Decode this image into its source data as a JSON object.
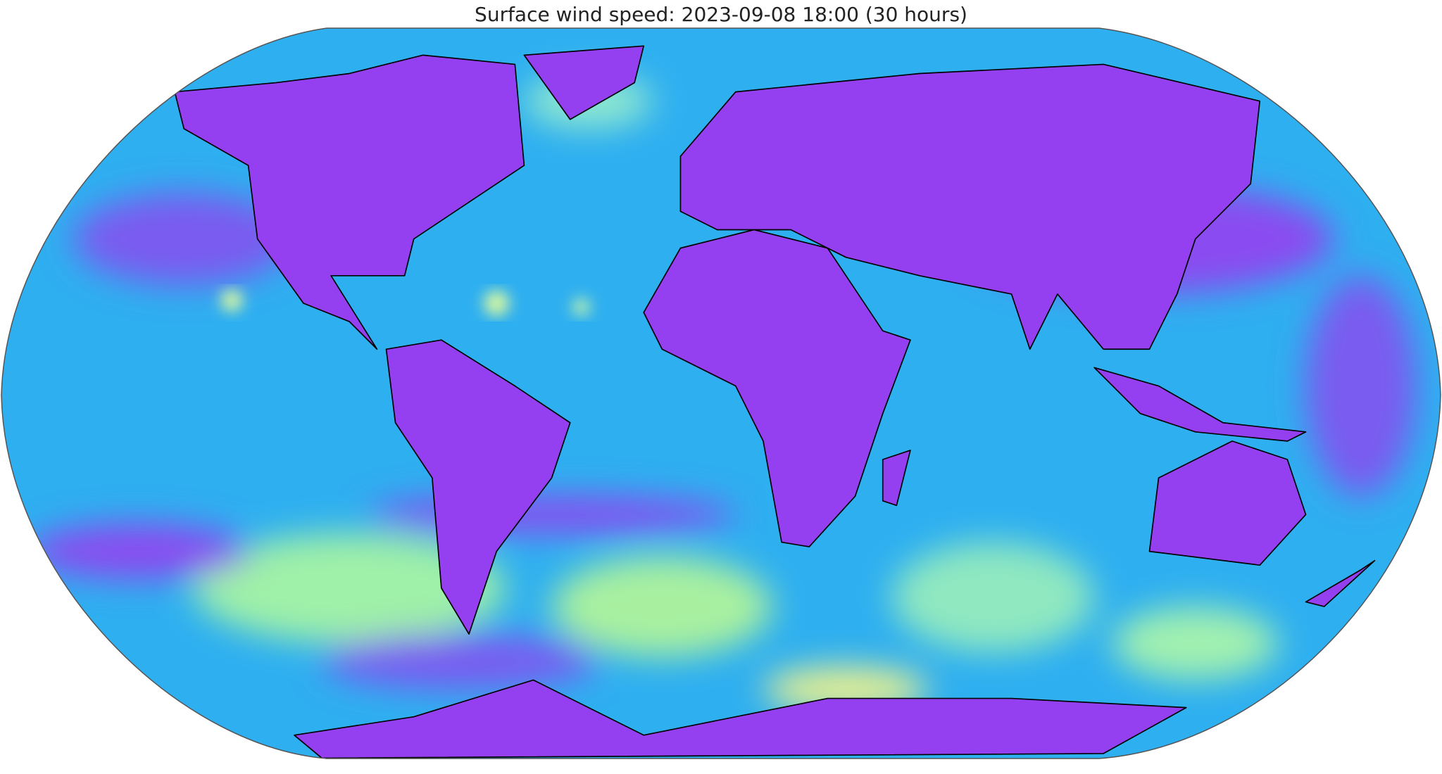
{
  "title": "Surface wind speed: 2023-09-08 18:00 (30 hours)"
}
